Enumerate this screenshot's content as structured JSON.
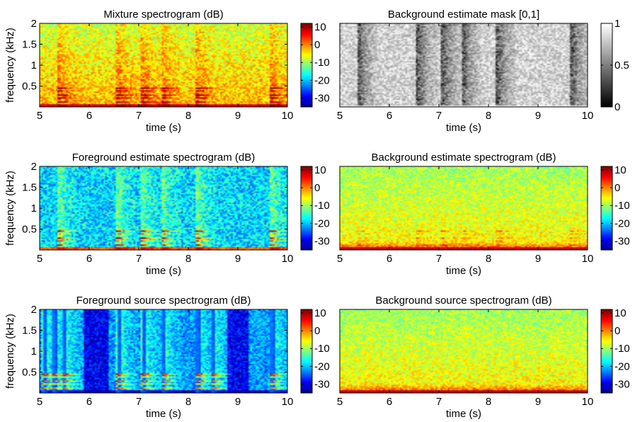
{
  "colors": {
    "jet": [
      "#00008f",
      "#0000ff",
      "#0080ff",
      "#00ffff",
      "#80ff80",
      "#ffff00",
      "#ff8000",
      "#ff0000",
      "#800000"
    ],
    "gray": [
      "#000000",
      "#ffffff"
    ]
  },
  "chart_data": [
    {
      "type": "heatmap",
      "title": "Mixture spectrogram (dB)",
      "xlabel": "time (s)",
      "ylabel": "frequency (kHz)",
      "xlim": [
        5,
        10
      ],
      "ylim": [
        0,
        2
      ],
      "xticks": [
        "5",
        "6",
        "7",
        "8",
        "9",
        "10"
      ],
      "yticks": [
        "0.5",
        "1",
        "1.5",
        "2"
      ],
      "colorbar": {
        "colormap": "jet",
        "range": [
          -35,
          12
        ],
        "ticks": [
          "10",
          "0",
          "-10",
          "-20",
          "-30"
        ]
      },
      "pattern": {
        "kind": "mixture",
        "base": -7
      },
      "onsets": [
        5.4,
        6.6,
        7.1,
        7.5,
        8.2,
        9.7
      ]
    },
    {
      "type": "heatmap",
      "title": "Background estimate mask [0,1]",
      "xlabel": "time (s)",
      "ylabel": "",
      "xlim": [
        5,
        10
      ],
      "ylim": [
        0,
        2
      ],
      "xticks": [
        "5",
        "6",
        "7",
        "8",
        "9",
        "10"
      ],
      "yticks": [],
      "colorbar": {
        "colormap": "gray",
        "range": [
          0,
          1
        ],
        "ticks": [
          "1",
          "0.5",
          "0"
        ]
      },
      "pattern": {
        "kind": "mask",
        "base": 0.82
      },
      "onsets": [
        5.4,
        6.6,
        7.1,
        7.5,
        8.2,
        9.7
      ]
    },
    {
      "type": "heatmap",
      "title": "Foreground estimate spectrogram (dB)",
      "xlabel": "time (s)",
      "ylabel": "frequency (kHz)",
      "xlim": [
        5,
        10
      ],
      "ylim": [
        0,
        2
      ],
      "xticks": [
        "5",
        "6",
        "7",
        "8",
        "9",
        "10"
      ],
      "yticks": [
        "0.5",
        "1",
        "1.5",
        "2"
      ],
      "colorbar": {
        "colormap": "jet",
        "range": [
          -35,
          12
        ],
        "ticks": [
          "10",
          "0",
          "-10",
          "-20",
          "-30"
        ]
      },
      "pattern": {
        "kind": "foreground",
        "base": -18
      },
      "onsets": [
        5.4,
        6.6,
        7.1,
        7.5,
        8.2,
        9.7
      ]
    },
    {
      "type": "heatmap",
      "title": "Background estimate spectrogram (dB)",
      "xlabel": "time (s)",
      "ylabel": "",
      "xlim": [
        5,
        10
      ],
      "ylim": [
        0,
        2
      ],
      "xticks": [
        "5",
        "6",
        "7",
        "8",
        "9",
        "10"
      ],
      "yticks": [],
      "colorbar": {
        "colormap": "jet",
        "range": [
          -35,
          12
        ],
        "ticks": [
          "10",
          "0",
          "-10",
          "-20",
          "-30"
        ]
      },
      "pattern": {
        "kind": "background",
        "base": -9
      },
      "onsets": [
        5.4,
        6.6,
        7.1,
        7.5,
        8.2,
        9.7
      ]
    },
    {
      "type": "heatmap",
      "title": "Foreground source spectrogram (dB)",
      "xlabel": "time (s)",
      "ylabel": "frequency (kHz)",
      "xlim": [
        5,
        10
      ],
      "ylim": [
        0,
        2
      ],
      "xticks": [
        "5",
        "6",
        "7",
        "8",
        "9",
        "10"
      ],
      "yticks": [
        "0.5",
        "1",
        "1.5",
        "2"
      ],
      "colorbar": {
        "colormap": "jet",
        "range": [
          -35,
          12
        ],
        "ticks": [
          "10",
          "0",
          "-10",
          "-20",
          "-30"
        ]
      },
      "pattern": {
        "kind": "source",
        "base": -20
      },
      "onsets": [
        5.1,
        5.3,
        5.5,
        6.6,
        7.1,
        7.5,
        8.2,
        8.5,
        9.7
      ]
    },
    {
      "type": "heatmap",
      "title": "Background source spectrogram (dB)",
      "xlabel": "time (s)",
      "ylabel": "",
      "xlim": [
        5,
        10
      ],
      "ylim": [
        0,
        2
      ],
      "xticks": [
        "5",
        "6",
        "7",
        "8",
        "9",
        "10"
      ],
      "yticks": [],
      "colorbar": {
        "colormap": "jet",
        "range": [
          -35,
          12
        ],
        "ticks": [
          "10",
          "0",
          "-10",
          "-20",
          "-30"
        ]
      },
      "pattern": {
        "kind": "background",
        "base": -10
      },
      "onsets": []
    }
  ]
}
